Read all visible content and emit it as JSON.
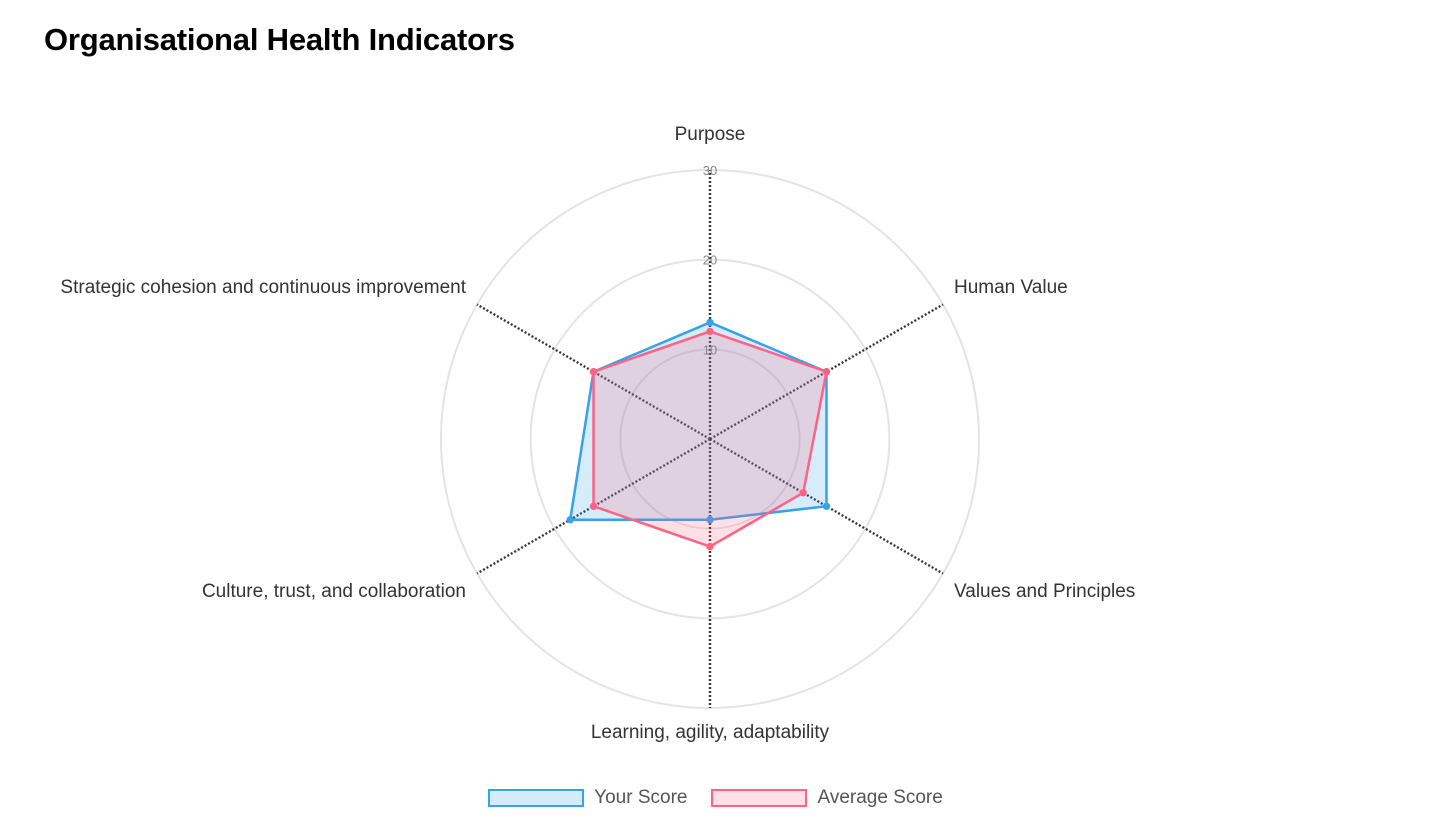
{
  "title": "Organisational Health Indicators",
  "colors": {
    "your_score": "#36a2eb",
    "your_score_fill": "rgba(54,162,235,0.2)",
    "average_score": "#ff6384",
    "average_score_fill": "rgba(255,99,132,0.2)",
    "grid": "#e4e4e4",
    "axis": "#333333"
  },
  "chart_data": {
    "type": "radar",
    "title": "Organisational Health Indicators",
    "categories": [
      "Purpose",
      "Human Value",
      "Values and Principles",
      "Learning, agility, adaptability",
      "Culture, trust, and collaboration",
      "Strategic cohesion and continuous improvement"
    ],
    "r_ticks": [
      "10",
      "20",
      "30"
    ],
    "rlim": [
      0,
      30
    ],
    "grid": true,
    "legend": "bottom",
    "series": [
      {
        "name": "Your Score",
        "values": [
          13,
          15,
          15,
          9,
          18,
          15
        ]
      },
      {
        "name": "Average Score",
        "values": [
          12,
          15,
          12,
          12,
          15,
          15
        ]
      }
    ]
  }
}
